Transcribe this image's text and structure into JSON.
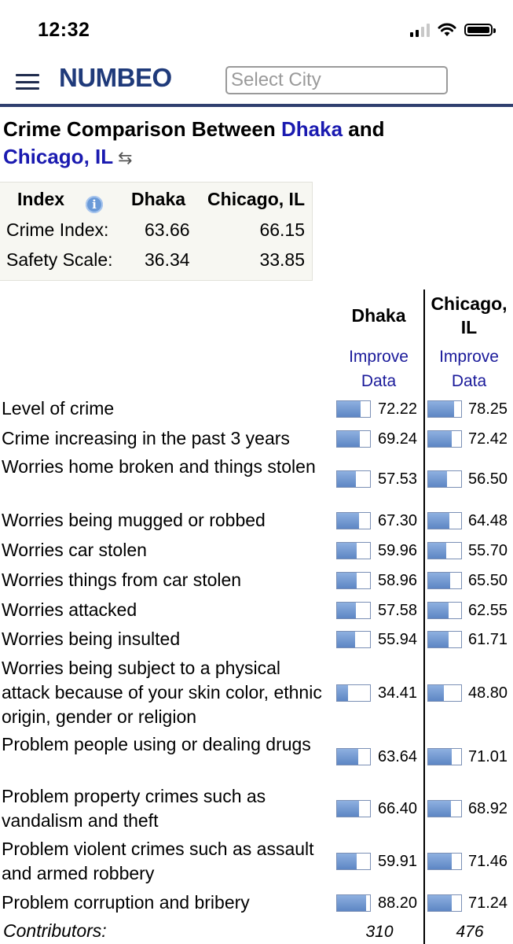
{
  "status_bar": {
    "time": "12:32"
  },
  "header": {
    "logo": "NUMBEO",
    "search_placeholder": "Select City"
  },
  "title": {
    "prefix": "Crime Comparison Between ",
    "city1": "Dhaka",
    "middle": " and",
    "city2": "Chicago, IL",
    "swap_icon": "⇆"
  },
  "summary": {
    "headers": [
      "Index",
      "Dhaka",
      "Chicago, IL"
    ],
    "rows": [
      {
        "label": "Crime Index:",
        "v1": "63.66",
        "v2": "66.15"
      },
      {
        "label": "Safety Scale:",
        "v1": "36.34",
        "v2": "33.85"
      }
    ]
  },
  "comparison": {
    "city1": "Dhaka",
    "city2_line1": "Chicago,",
    "city2_line2": "IL",
    "improve_line1": "Improve",
    "improve_line2": "Data",
    "rows": [
      {
        "label": "Level of crime",
        "v1": "72.22",
        "v2": "78.25"
      },
      {
        "label": "Crime increasing in the past 3 years",
        "v1": "69.24",
        "v2": "72.42"
      },
      {
        "label": "Worries home broken and things stolen",
        "v1": "57.53",
        "v2": "56.50"
      },
      {
        "label": "Worries being mugged or robbed",
        "v1": "67.30",
        "v2": "64.48"
      },
      {
        "label": "Worries car stolen",
        "v1": "59.96",
        "v2": "55.70"
      },
      {
        "label": "Worries things from car stolen",
        "v1": "58.96",
        "v2": "65.50"
      },
      {
        "label": "Worries attacked",
        "v1": "57.58",
        "v2": "62.55"
      },
      {
        "label": "Worries being insulted",
        "v1": "55.94",
        "v2": "61.71"
      },
      {
        "label": "Worries being subject to a physical attack because of your skin color, ethnic origin, gender or religion",
        "v1": "34.41",
        "v2": "48.80"
      },
      {
        "label": "Problem people using or dealing drugs",
        "v1": "63.64",
        "v2": "71.01"
      },
      {
        "label": "Problem property crimes such as vandalism and theft",
        "v1": "66.40",
        "v2": "68.92"
      },
      {
        "label": "Problem violent crimes such as assault and armed robbery",
        "v1": "59.91",
        "v2": "71.46"
      },
      {
        "label": "Problem corruption and bribery",
        "v1": "88.20",
        "v2": "71.24"
      }
    ],
    "contributors_label": "Contributors:",
    "contributors1": "310",
    "contributors2": "476"
  }
}
